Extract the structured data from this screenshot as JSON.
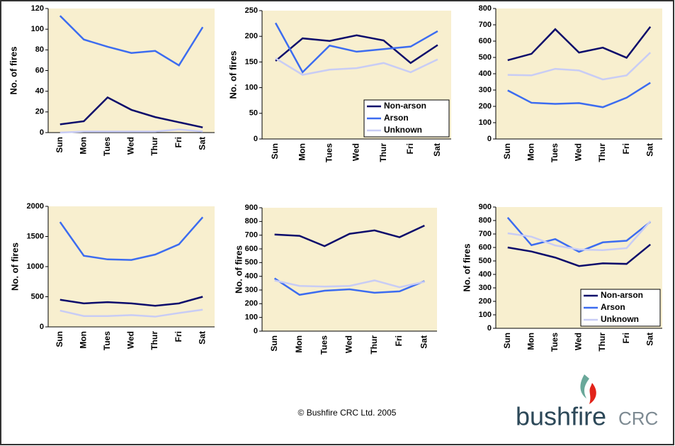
{
  "chart_data": [
    {
      "type": "line",
      "ylabel": "No. of fires",
      "categories": [
        "Sun",
        "Mon",
        "Tues",
        "Wed",
        "Thur",
        "Fri",
        "Sat"
      ],
      "ylim": [
        0,
        120
      ],
      "yticks": [
        0,
        20,
        40,
        60,
        80,
        100,
        120
      ],
      "series": [
        {
          "color": "#0b0b6b",
          "values": [
            8,
            11,
            34,
            22,
            15,
            10,
            5
          ]
        },
        {
          "color": "#3c6cf0",
          "values": [
            113,
            90,
            83,
            77,
            79,
            65,
            102
          ]
        },
        {
          "color": "#c8ccf5",
          "values": [
            0,
            1,
            1,
            1,
            1,
            3,
            1
          ]
        }
      ]
    },
    {
      "type": "line",
      "ylabel": "No. of fires",
      "categories": [
        "Sun",
        "Mon",
        "Tues",
        "Wed",
        "Thur",
        "Fri",
        "Sat"
      ],
      "ylim": [
        0,
        250
      ],
      "yticks": [
        0,
        50,
        100,
        150,
        200,
        250
      ],
      "legend": "lower right",
      "series": [
        {
          "name": "Non-arson",
          "color": "#0b0b6b",
          "values": [
            152,
            196,
            191,
            202,
            192,
            148,
            183
          ]
        },
        {
          "name": "Arson",
          "color": "#3c6cf0",
          "values": [
            226,
            130,
            182,
            170,
            175,
            180,
            210
          ]
        },
        {
          "name": "Unknown",
          "color": "#c8ccf5",
          "values": [
            157,
            125,
            135,
            138,
            148,
            130,
            155
          ]
        }
      ]
    },
    {
      "type": "line",
      "categories": [
        "Sun",
        "Mon",
        "Tues",
        "Wed",
        "Thur",
        "Fri",
        "Sat"
      ],
      "ylim": [
        0,
        800
      ],
      "yticks": [
        0,
        100,
        200,
        300,
        400,
        500,
        600,
        700,
        800
      ],
      "series": [
        {
          "color": "#0b0b6b",
          "values": [
            483,
            522,
            673,
            530,
            560,
            498,
            688
          ]
        },
        {
          "color": "#3c6cf0",
          "values": [
            298,
            222,
            215,
            220,
            195,
            253,
            345
          ]
        },
        {
          "color": "#c8ccf5",
          "values": [
            393,
            390,
            430,
            420,
            365,
            390,
            530
          ]
        }
      ]
    },
    {
      "type": "line",
      "ylabel": "No. of fires",
      "categories": [
        "Sun",
        "Mon",
        "Tues",
        "Wed",
        "Thur",
        "Fri",
        "Sat"
      ],
      "ylim": [
        0,
        2000
      ],
      "yticks": [
        0,
        500,
        1000,
        1500,
        2000
      ],
      "series": [
        {
          "color": "#0b0b6b",
          "values": [
            450,
            390,
            410,
            390,
            350,
            390,
            500
          ]
        },
        {
          "color": "#3c6cf0",
          "values": [
            1740,
            1180,
            1120,
            1110,
            1200,
            1370,
            1820
          ]
        },
        {
          "color": "#c8ccf5",
          "values": [
            270,
            180,
            180,
            195,
            170,
            230,
            285
          ]
        }
      ]
    },
    {
      "type": "line",
      "ylabel": "No. of fires",
      "categories": [
        "Sun",
        "Mon",
        "Tues",
        "Wed",
        "Thur",
        "Fri",
        "Sat"
      ],
      "ylim": [
        0,
        900
      ],
      "yticks": [
        0,
        100,
        200,
        300,
        400,
        500,
        600,
        700,
        800,
        900
      ],
      "series": [
        {
          "color": "#0b0b6b",
          "values": [
            705,
            695,
            620,
            710,
            735,
            685,
            770
          ]
        },
        {
          "color": "#3c6cf0",
          "values": [
            385,
            265,
            295,
            305,
            280,
            290,
            365
          ]
        },
        {
          "color": "#c8ccf5",
          "values": [
            370,
            330,
            325,
            330,
            370,
            320,
            360
          ]
        }
      ]
    },
    {
      "type": "line",
      "ylabel": "No. of fires",
      "categories": [
        "Sun",
        "Mon",
        "Tues",
        "Wed",
        "Thur",
        "Fri",
        "Sat"
      ],
      "ylim": [
        0,
        900
      ],
      "yticks": [
        0,
        100,
        200,
        300,
        400,
        500,
        600,
        700,
        800,
        900
      ],
      "legend": "lower right",
      "series": [
        {
          "name": "Non-arson",
          "color": "#0b0b6b",
          "values": [
            600,
            570,
            525,
            462,
            482,
            478,
            622
          ]
        },
        {
          "name": "Arson",
          "color": "#3c6cf0",
          "values": [
            822,
            617,
            662,
            568,
            638,
            650,
            790
          ]
        },
        {
          "name": "Unknown",
          "color": "#c8ccf5",
          "values": [
            705,
            680,
            615,
            585,
            580,
            595,
            795
          ]
        }
      ]
    }
  ],
  "footer": {
    "copyright": "© Bushfire CRC Ltd. 2005",
    "logo_main": "bushfire",
    "logo_sub": "CRC"
  }
}
